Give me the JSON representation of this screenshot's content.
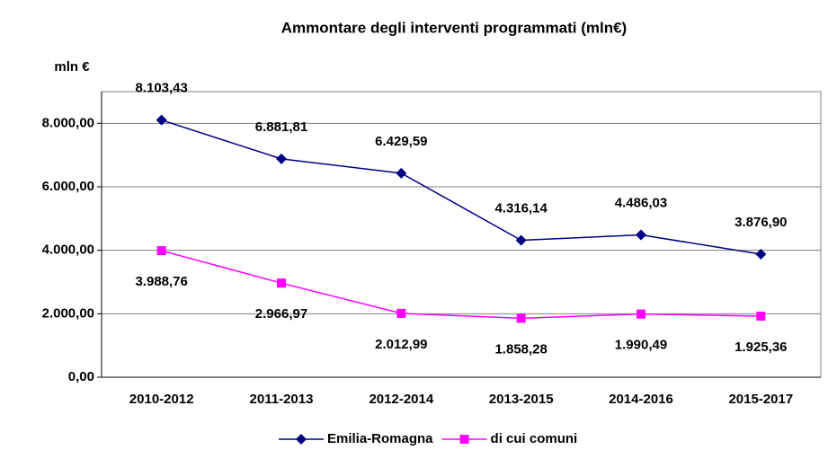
{
  "chart_data": {
    "type": "line",
    "title": "Ammontare degli interventi programmati (mln€)",
    "y_label": "mln €",
    "categories": [
      "2010-2012",
      "2011-2013",
      "2012-2014",
      "2013-2015",
      "2014-2016",
      "2015-2017"
    ],
    "series": [
      {
        "name": "Emilia-Romagna",
        "color": "#000080",
        "marker": "diamond",
        "values": [
          8103.43,
          6881.81,
          6429.59,
          4316.14,
          4486.03,
          3876.9
        ],
        "value_labels": [
          "8.103,43",
          "6.881,81",
          "6.429,59",
          "4.316,14",
          "4.486,03",
          "3.876,90"
        ]
      },
      {
        "name": "di cui comuni",
        "color": "#ff00ff",
        "marker": "square",
        "values": [
          3988.76,
          2966.97,
          2012.99,
          1858.28,
          1990.49,
          1925.36
        ],
        "value_labels": [
          "3.988,76",
          "2.966,97",
          "2.012,99",
          "1.858,28",
          "1.990,49",
          "1.925,36"
        ]
      }
    ],
    "ylim": [
      0,
      9000
    ],
    "yticks": [
      {
        "value": 0,
        "label": "0,00"
      },
      {
        "value": 2000,
        "label": "2.000,00"
      },
      {
        "value": 4000,
        "label": "4.000,00"
      },
      {
        "value": 6000,
        "label": "6.000,00"
      },
      {
        "value": 8000,
        "label": "8.000,00"
      }
    ],
    "grid": true,
    "legend": "bottom"
  }
}
